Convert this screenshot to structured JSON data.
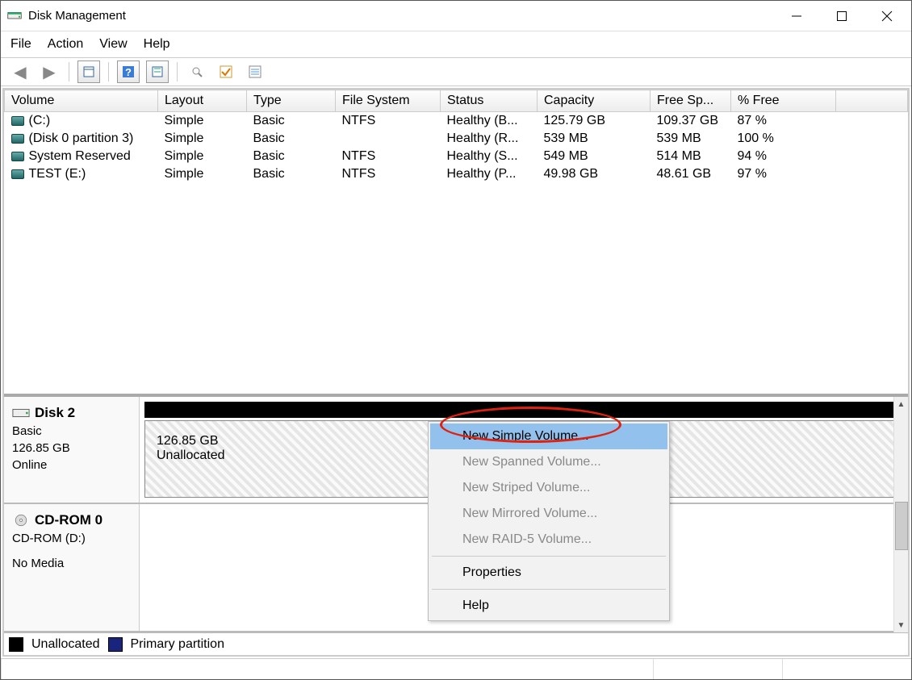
{
  "window": {
    "title": "Disk Management"
  },
  "menus": {
    "file": "File",
    "action": "Action",
    "view": "View",
    "help": "Help"
  },
  "columns": {
    "volume": "Volume",
    "layout": "Layout",
    "type": "Type",
    "fs": "File System",
    "status": "Status",
    "capacity": "Capacity",
    "free": "Free Sp...",
    "pct": "% Free"
  },
  "volumes": [
    {
      "name": "(C:)",
      "layout": "Simple",
      "type": "Basic",
      "fs": "NTFS",
      "status": "Healthy (B...",
      "cap": "125.79 GB",
      "free": "109.37 GB",
      "pct": "87 %"
    },
    {
      "name": "(Disk 0 partition 3)",
      "layout": "Simple",
      "type": "Basic",
      "fs": "",
      "status": "Healthy (R...",
      "cap": "539 MB",
      "free": "539 MB",
      "pct": "100 %"
    },
    {
      "name": "System Reserved",
      "layout": "Simple",
      "type": "Basic",
      "fs": "NTFS",
      "status": "Healthy (S...",
      "cap": "549 MB",
      "free": "514 MB",
      "pct": "94 %"
    },
    {
      "name": "TEST (E:)",
      "layout": "Simple",
      "type": "Basic",
      "fs": "NTFS",
      "status": "Healthy (P...",
      "cap": "49.98 GB",
      "free": "48.61 GB",
      "pct": "97 %"
    }
  ],
  "disk2": {
    "name": "Disk 2",
    "type": "Basic",
    "size": "126.85 GB",
    "status": "Online",
    "partSize": "126.85 GB",
    "partStatus": "Unallocated"
  },
  "cdrom": {
    "name": "CD-ROM 0",
    "sub": "CD-ROM (D:)",
    "status": "No Media"
  },
  "legend": {
    "unalloc": "Unallocated",
    "primary": "Primary partition",
    "unallocColor": "#000000",
    "primaryColor": "#1a237e"
  },
  "context": {
    "items": [
      {
        "label": "New Simple Volume...",
        "enabled": true,
        "highlight": true
      },
      {
        "label": "New Spanned Volume...",
        "enabled": false
      },
      {
        "label": "New Striped Volume...",
        "enabled": false
      },
      {
        "label": "New Mirrored Volume...",
        "enabled": false
      },
      {
        "label": "New RAID-5 Volume...",
        "enabled": false
      },
      {
        "sep": true
      },
      {
        "label": "Properties",
        "enabled": true
      },
      {
        "sep": true
      },
      {
        "label": "Help",
        "enabled": true
      }
    ]
  },
  "annotation": {
    "ellipseColor": "#d21"
  }
}
